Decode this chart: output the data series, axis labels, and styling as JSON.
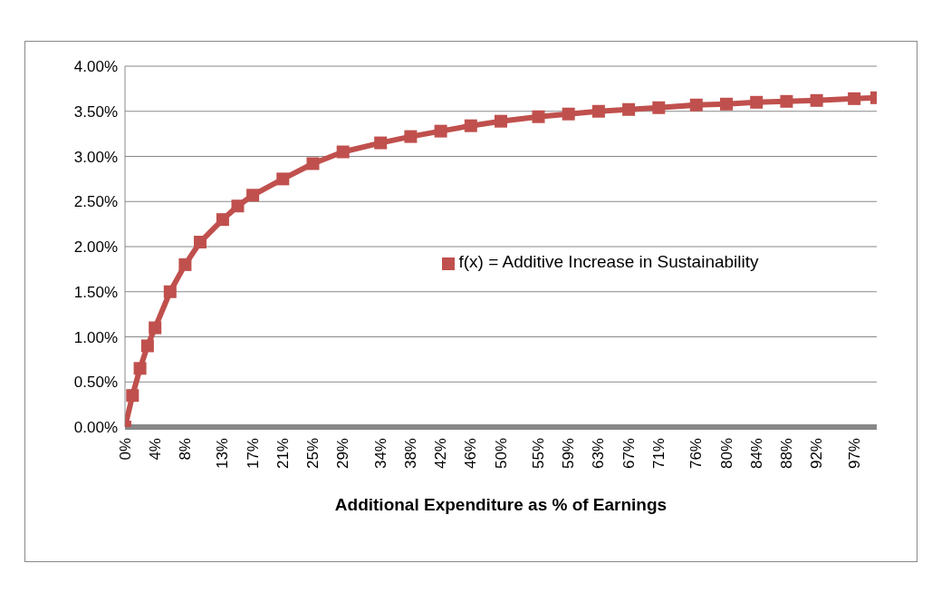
{
  "chart_data": {
    "type": "line",
    "xlabel": "Additional Expenditure as % of Earnings",
    "x": [
      0,
      1,
      2,
      3,
      4,
      6,
      8,
      10,
      13,
      15,
      17,
      21,
      25,
      29,
      34,
      38,
      42,
      46,
      50,
      55,
      59,
      63,
      67,
      71,
      76,
      80,
      84,
      88,
      92,
      97,
      100
    ],
    "series": [
      {
        "name": "f(x) = Additive Increase in Sustainability",
        "color": "#c0504d",
        "values": [
          0,
          0.35,
          0.65,
          0.9,
          1.1,
          1.5,
          1.8,
          2.05,
          2.3,
          2.45,
          2.57,
          2.75,
          2.92,
          3.05,
          3.15,
          3.22,
          3.28,
          3.34,
          3.39,
          3.44,
          3.47,
          3.5,
          3.52,
          3.54,
          3.57,
          3.58,
          3.6,
          3.61,
          3.62,
          3.64,
          3.65
        ]
      }
    ],
    "xlim": [
      0,
      100
    ],
    "xticks": [
      {
        "value": 0,
        "label": "0%"
      },
      {
        "value": 4,
        "label": "4%"
      },
      {
        "value": 8,
        "label": "8%"
      },
      {
        "value": 13,
        "label": "13%"
      },
      {
        "value": 17,
        "label": "17%"
      },
      {
        "value": 21,
        "label": "21%"
      },
      {
        "value": 25,
        "label": "25%"
      },
      {
        "value": 29,
        "label": "29%"
      },
      {
        "value": 34,
        "label": "34%"
      },
      {
        "value": 38,
        "label": "38%"
      },
      {
        "value": 42,
        "label": "42%"
      },
      {
        "value": 46,
        "label": "46%"
      },
      {
        "value": 50,
        "label": "50%"
      },
      {
        "value": 55,
        "label": "55%"
      },
      {
        "value": 59,
        "label": "59%"
      },
      {
        "value": 63,
        "label": "63%"
      },
      {
        "value": 67,
        "label": "67%"
      },
      {
        "value": 71,
        "label": "71%"
      },
      {
        "value": 76,
        "label": "76%"
      },
      {
        "value": 80,
        "label": "80%"
      },
      {
        "value": 84,
        "label": "84%"
      },
      {
        "value": 88,
        "label": "88%"
      },
      {
        "value": 92,
        "label": "92%"
      },
      {
        "value": 97,
        "label": "97%"
      }
    ],
    "ylim": [
      0,
      4
    ],
    "yticks": [
      {
        "value": 0,
        "label": "0.00%"
      },
      {
        "value": 0.5,
        "label": "0.50%"
      },
      {
        "value": 1,
        "label": "1.00%"
      },
      {
        "value": 1.5,
        "label": "1.50%"
      },
      {
        "value": 2,
        "label": "2.00%"
      },
      {
        "value": 2.5,
        "label": "2.50%"
      },
      {
        "value": 3,
        "label": "3.00%"
      },
      {
        "value": 3.5,
        "label": "3.50%"
      },
      {
        "value": 4,
        "label": "4.00%"
      }
    ],
    "grid": "y",
    "legend": "right",
    "marker": "square",
    "line_style": "solid"
  }
}
